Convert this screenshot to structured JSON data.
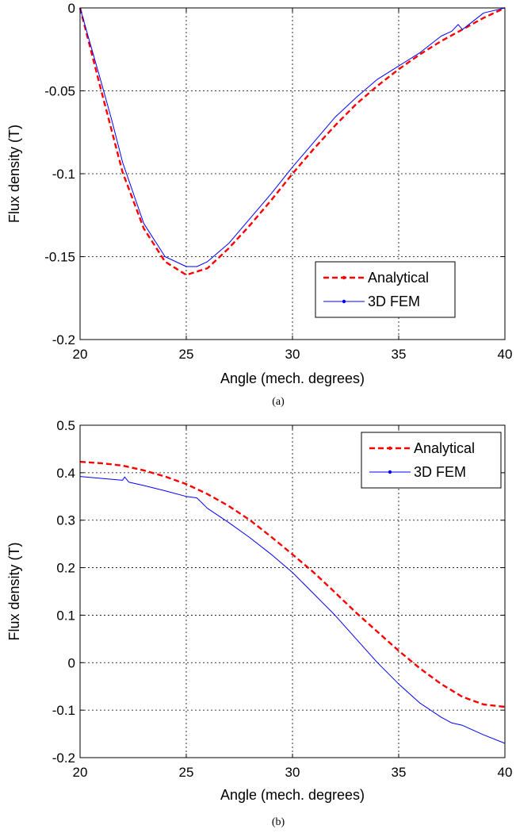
{
  "chart_data": [
    {
      "type": "line",
      "caption": "(a)",
      "xlabel": "Angle (mech. degrees)",
      "ylabel": "Flux density (T)",
      "xlim": [
        20,
        40
      ],
      "ylim": [
        -0.2,
        0
      ],
      "xticks": [
        "20",
        "25",
        "30",
        "35",
        "40"
      ],
      "yticks": [
        "-0.2",
        "-0.15",
        "-0.1",
        "-0.05",
        "0"
      ],
      "grid": true,
      "legend_position": "bottom-right",
      "series": [
        {
          "name": "Analytical",
          "color": "#ff0000",
          "style": "dashed",
          "x": [
            20,
            21,
            22,
            23,
            24,
            25,
            26,
            27,
            28,
            29,
            30,
            31,
            32,
            33,
            34,
            35,
            36,
            37,
            38,
            39,
            40
          ],
          "values": [
            0,
            -0.05,
            -0.099,
            -0.133,
            -0.153,
            -0.161,
            -0.157,
            -0.145,
            -0.131,
            -0.116,
            -0.1,
            -0.085,
            -0.071,
            -0.058,
            -0.047,
            -0.037,
            -0.028,
            -0.02,
            -0.013,
            -0.006,
            0
          ]
        },
        {
          "name": "3D FEM",
          "color": "#0000ff",
          "style": "solid",
          "x": [
            20,
            21,
            21.5,
            22,
            23,
            24,
            25,
            25.5,
            26,
            27,
            28,
            29,
            30,
            31,
            32,
            33,
            34,
            35,
            36,
            37,
            37.5,
            37.8,
            38,
            39,
            40
          ],
          "values": [
            0,
            -0.045,
            -0.068,
            -0.093,
            -0.13,
            -0.15,
            -0.156,
            -0.156,
            -0.153,
            -0.142,
            -0.127,
            -0.112,
            -0.096,
            -0.081,
            -0.066,
            -0.054,
            -0.043,
            -0.035,
            -0.027,
            -0.017,
            -0.014,
            -0.01,
            -0.013,
            -0.003,
            0
          ]
        }
      ]
    },
    {
      "type": "line",
      "caption": "(b)",
      "xlabel": "Angle (mech. degrees)",
      "ylabel": "Flux density (T)",
      "xlim": [
        20,
        40
      ],
      "ylim": [
        -0.2,
        0.5
      ],
      "xticks": [
        "20",
        "25",
        "30",
        "35",
        "40"
      ],
      "yticks": [
        "-0.2",
        "-0.1",
        "0",
        "0.1",
        "0.2",
        "0.3",
        "0.4",
        "0.5"
      ],
      "grid": true,
      "legend_position": "top-right",
      "series": [
        {
          "name": "Analytical",
          "color": "#ff0000",
          "style": "dashed",
          "x": [
            20,
            21,
            22,
            23,
            24,
            25,
            26,
            27,
            28,
            29,
            30,
            31,
            32,
            33,
            34,
            35,
            36,
            37,
            38,
            39,
            40
          ],
          "values": [
            0.423,
            0.42,
            0.415,
            0.405,
            0.392,
            0.376,
            0.355,
            0.33,
            0.3,
            0.265,
            0.228,
            0.19,
            0.148,
            0.105,
            0.065,
            0.025,
            -0.012,
            -0.045,
            -0.072,
            -0.088,
            -0.093
          ]
        },
        {
          "name": "3D FEM",
          "color": "#0000ff",
          "style": "solid",
          "x": [
            20,
            21,
            22,
            22.1,
            22.3,
            23,
            24,
            25,
            25.5,
            26,
            27,
            28,
            29,
            30,
            31,
            32,
            33,
            34,
            35,
            36,
            37,
            37.5,
            38,
            39,
            40
          ],
          "values": [
            0.392,
            0.388,
            0.384,
            0.391,
            0.38,
            0.373,
            0.362,
            0.35,
            0.347,
            0.325,
            0.295,
            0.263,
            0.228,
            0.19,
            0.145,
            0.1,
            0.05,
            0.0,
            -0.045,
            -0.085,
            -0.115,
            -0.127,
            -0.132,
            -0.152,
            -0.17
          ]
        }
      ]
    }
  ]
}
